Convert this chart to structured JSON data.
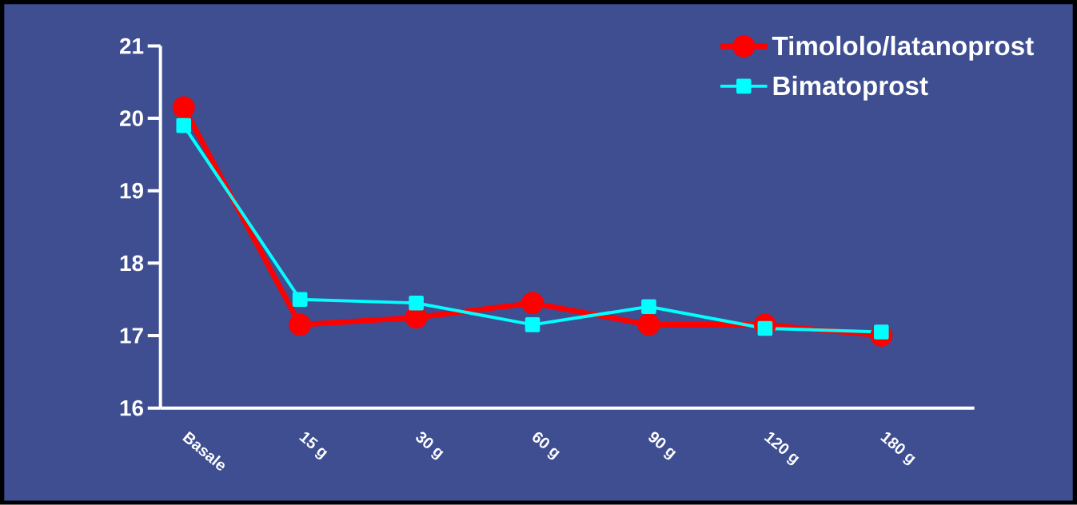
{
  "chart_data": {
    "type": "line",
    "categories": [
      "Basale",
      "15 g",
      "30 g",
      "60 g",
      "90 g",
      "120 g",
      "180 g"
    ],
    "series": [
      {
        "name": "Timololo/latanoprost",
        "color": "#ff0000",
        "marker": "circle",
        "values": [
          20.15,
          17.15,
          17.25,
          17.45,
          17.15,
          17.15,
          17.0
        ]
      },
      {
        "name": "Bimatoprost",
        "color": "#00ffff",
        "marker": "square",
        "values": [
          19.9,
          17.5,
          17.45,
          17.15,
          17.4,
          17.1,
          17.05
        ]
      }
    ],
    "ylim": [
      16,
      21
    ],
    "yticks": [
      16,
      17,
      18,
      19,
      20,
      21
    ],
    "grid": false,
    "legend": "top right",
    "line_style": "solid"
  }
}
